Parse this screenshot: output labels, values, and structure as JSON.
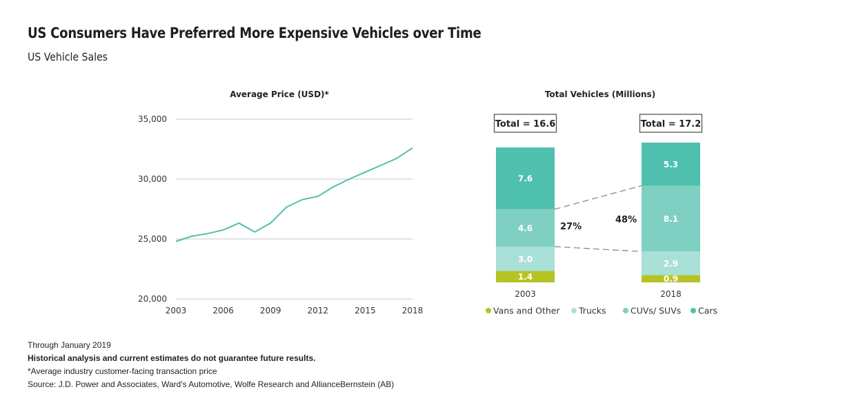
{
  "header": {
    "title": "US Consumers Have Preferred More Expensive Vehicles over Time",
    "subtitle": "US Vehicle Sales"
  },
  "colors": {
    "line": "#4fbfae",
    "grid": "#d4d4d4",
    "cars": "#4fbfae",
    "cuvs": "#7fd0c3",
    "trucks": "#a9e0d8",
    "vans": "#b5c424",
    "dash": "#8a8a8a"
  },
  "chart_data": [
    {
      "type": "line",
      "title": "Average Price (USD)*",
      "xlabel": "",
      "ylabel": "",
      "x": [
        2003,
        2004,
        2005,
        2006,
        2007,
        2008,
        2009,
        2010,
        2011,
        2012,
        2013,
        2014,
        2015,
        2016,
        2017,
        2018
      ],
      "series": [
        {
          "name": "Average Price (USD)",
          "values": [
            24800,
            25230,
            25450,
            25750,
            26330,
            25580,
            26330,
            27650,
            28280,
            28560,
            29370,
            30000,
            30580,
            31150,
            31730,
            32600
          ]
        }
      ],
      "ylim": [
        20000,
        35000
      ],
      "yticks": [
        20000,
        25000,
        30000,
        35000
      ],
      "ytick_labels": [
        "20,000",
        "25,000",
        "30,000",
        "35,000"
      ],
      "xticks": [
        2003,
        2006,
        2009,
        2012,
        2015,
        2018
      ],
      "xtick_labels": [
        "2003",
        "2006",
        "2009",
        "2012",
        "2015",
        "2018"
      ],
      "grid": true
    },
    {
      "type": "bar",
      "stacked": true,
      "title": "Total Vehicles (Millions)",
      "categories": [
        "2003",
        "2018"
      ],
      "totals": [
        16.6,
        17.2
      ],
      "total_labels": [
        "Total = 16.6",
        "Total = 17.2"
      ],
      "series": [
        {
          "name": "Vans and Other",
          "key": "vans",
          "values": [
            1.4,
            0.9
          ],
          "labels": [
            "1.4",
            "0.9"
          ]
        },
        {
          "name": "Trucks",
          "key": "trucks",
          "values": [
            3.0,
            2.9
          ],
          "labels": [
            "3.0",
            "2.9"
          ]
        },
        {
          "name": "CUVs/ SUVs",
          "key": "cuvs",
          "values": [
            4.6,
            8.1
          ],
          "labels": [
            "4.6",
            "8.1"
          ]
        },
        {
          "name": "Cars",
          "key": "cars",
          "values": [
            7.6,
            5.3
          ],
          "labels": [
            "7.6",
            "5.3"
          ]
        }
      ],
      "annotations": [
        {
          "text": "27%",
          "refers_to": "CUVs/ SUVs share 2003"
        },
        {
          "text": "48%",
          "refers_to": "CUVs/ SUVs share 2018"
        }
      ],
      "legend": [
        "Vans and Other",
        "Trucks",
        "CUVs/ SUVs",
        "Cars"
      ],
      "legend_position": "bottom"
    }
  ],
  "footer": {
    "date_note": "Through January 2019",
    "disclaimer": "Historical analysis and current estimates do not guarantee future results.",
    "footnote": "*Average industry customer-facing transaction price",
    "source": "Source: J.D. Power and Associates, Ward's Automotive, Wolfe Research and AllianceBernstein (AB)"
  }
}
